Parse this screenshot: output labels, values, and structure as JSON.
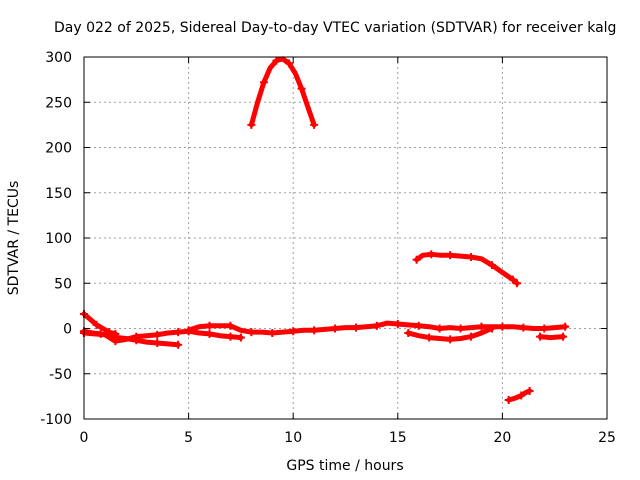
{
  "chart_data": {
    "type": "scatter",
    "title": "Day 022 of 2025, Sidereal Day-to-day VTEC variation (SDTVAR) for receiver kalg",
    "xlabel": "GPS time / hours",
    "ylabel": "SDTVAR / TECUs",
    "xlim": [
      0,
      25
    ],
    "ylim": [
      -100,
      300
    ],
    "xticks": [
      0,
      5,
      10,
      15,
      20,
      25
    ],
    "yticks": [
      -100,
      -50,
      0,
      50,
      100,
      150,
      200,
      250,
      300
    ],
    "grid": true,
    "legend": "none",
    "color": "#ff0000",
    "series": [
      {
        "values": [
          [
            8.0,
            225
          ],
          [
            8.3,
            250
          ],
          [
            8.6,
            272
          ],
          [
            8.9,
            288
          ],
          [
            9.2,
            296
          ],
          [
            9.5,
            298
          ],
          [
            9.8,
            293
          ],
          [
            10.1,
            282
          ],
          [
            10.4,
            265
          ],
          [
            10.7,
            245
          ],
          [
            11.0,
            225
          ]
        ]
      },
      {
        "values": [
          [
            15.9,
            76
          ],
          [
            16.2,
            81
          ],
          [
            16.6,
            82
          ],
          [
            17.0,
            81
          ],
          [
            17.5,
            81
          ],
          [
            18.0,
            80
          ],
          [
            18.5,
            79
          ],
          [
            19.0,
            77
          ],
          [
            19.5,
            70
          ],
          [
            20.0,
            62
          ],
          [
            20.5,
            54
          ],
          [
            20.7,
            50
          ]
        ]
      },
      {
        "values": [
          [
            20.3,
            -79
          ],
          [
            20.6,
            -77
          ],
          [
            20.9,
            -74
          ],
          [
            21.1,
            -71
          ],
          [
            21.3,
            -69
          ]
        ]
      },
      {
        "values": [
          [
            0.0,
            16
          ],
          [
            0.3,
            10
          ],
          [
            0.6,
            4
          ],
          [
            0.9,
            0
          ],
          [
            1.2,
            -4
          ],
          [
            1.5,
            -6
          ]
        ]
      },
      {
        "values": [
          [
            0.0,
            -3
          ],
          [
            0.4,
            -5
          ],
          [
            0.8,
            -6
          ],
          [
            1.2,
            -8
          ],
          [
            1.6,
            -10
          ],
          [
            2.0,
            -11
          ],
          [
            2.5,
            -13
          ],
          [
            3.0,
            -15
          ],
          [
            3.5,
            -16
          ],
          [
            4.0,
            -17
          ],
          [
            4.5,
            -18
          ]
        ]
      },
      {
        "values": [
          [
            0.0,
            -5
          ],
          [
            1.0,
            -7
          ],
          [
            1.5,
            -14
          ],
          [
            2.0,
            -12
          ],
          [
            2.5,
            -9
          ],
          [
            3.0,
            -8
          ],
          [
            3.5,
            -7
          ],
          [
            4.0,
            -5
          ],
          [
            4.5,
            -4
          ],
          [
            5.0,
            -3
          ]
        ]
      },
      {
        "values": [
          [
            5.0,
            -3
          ],
          [
            5.5,
            -5
          ],
          [
            6.0,
            -6
          ],
          [
            6.5,
            -8
          ],
          [
            7.0,
            -9
          ],
          [
            7.5,
            -10
          ]
        ]
      },
      {
        "values": [
          [
            5.0,
            -2
          ],
          [
            5.5,
            2
          ],
          [
            6.0,
            3
          ],
          [
            6.5,
            3
          ],
          [
            7.0,
            3
          ],
          [
            7.5,
            -2
          ],
          [
            8.0,
            -4
          ],
          [
            8.5,
            -4
          ],
          [
            9.0,
            -5
          ],
          [
            9.5,
            -4
          ],
          [
            10.0,
            -3
          ],
          [
            10.5,
            -2
          ],
          [
            11.0,
            -2
          ],
          [
            11.5,
            -1
          ],
          [
            12.0,
            0
          ],
          [
            12.5,
            1
          ],
          [
            13.0,
            1
          ],
          [
            13.5,
            2
          ],
          [
            14.0,
            3
          ],
          [
            14.5,
            6
          ],
          [
            15.0,
            5
          ],
          [
            15.5,
            4
          ],
          [
            16.0,
            3
          ],
          [
            16.5,
            2
          ],
          [
            17.0,
            0
          ],
          [
            17.5,
            1
          ],
          [
            18.0,
            0
          ],
          [
            18.5,
            1
          ],
          [
            19.0,
            2
          ],
          [
            19.5,
            2
          ],
          [
            20.0,
            2
          ],
          [
            20.5,
            2
          ],
          [
            21.0,
            1
          ],
          [
            21.5,
            0
          ],
          [
            22.0,
            0
          ],
          [
            22.5,
            1
          ],
          [
            23.0,
            2
          ]
        ]
      },
      {
        "values": [
          [
            15.5,
            -5
          ],
          [
            16.0,
            -8
          ],
          [
            16.5,
            -10
          ],
          [
            17.0,
            -11
          ],
          [
            17.5,
            -12
          ],
          [
            18.0,
            -11
          ],
          [
            18.5,
            -9
          ],
          [
            19.0,
            -5
          ],
          [
            19.5,
            0
          ]
        ]
      },
      {
        "values": [
          [
            21.8,
            -9
          ],
          [
            22.3,
            -10
          ],
          [
            22.9,
            -9
          ]
        ]
      }
    ]
  }
}
